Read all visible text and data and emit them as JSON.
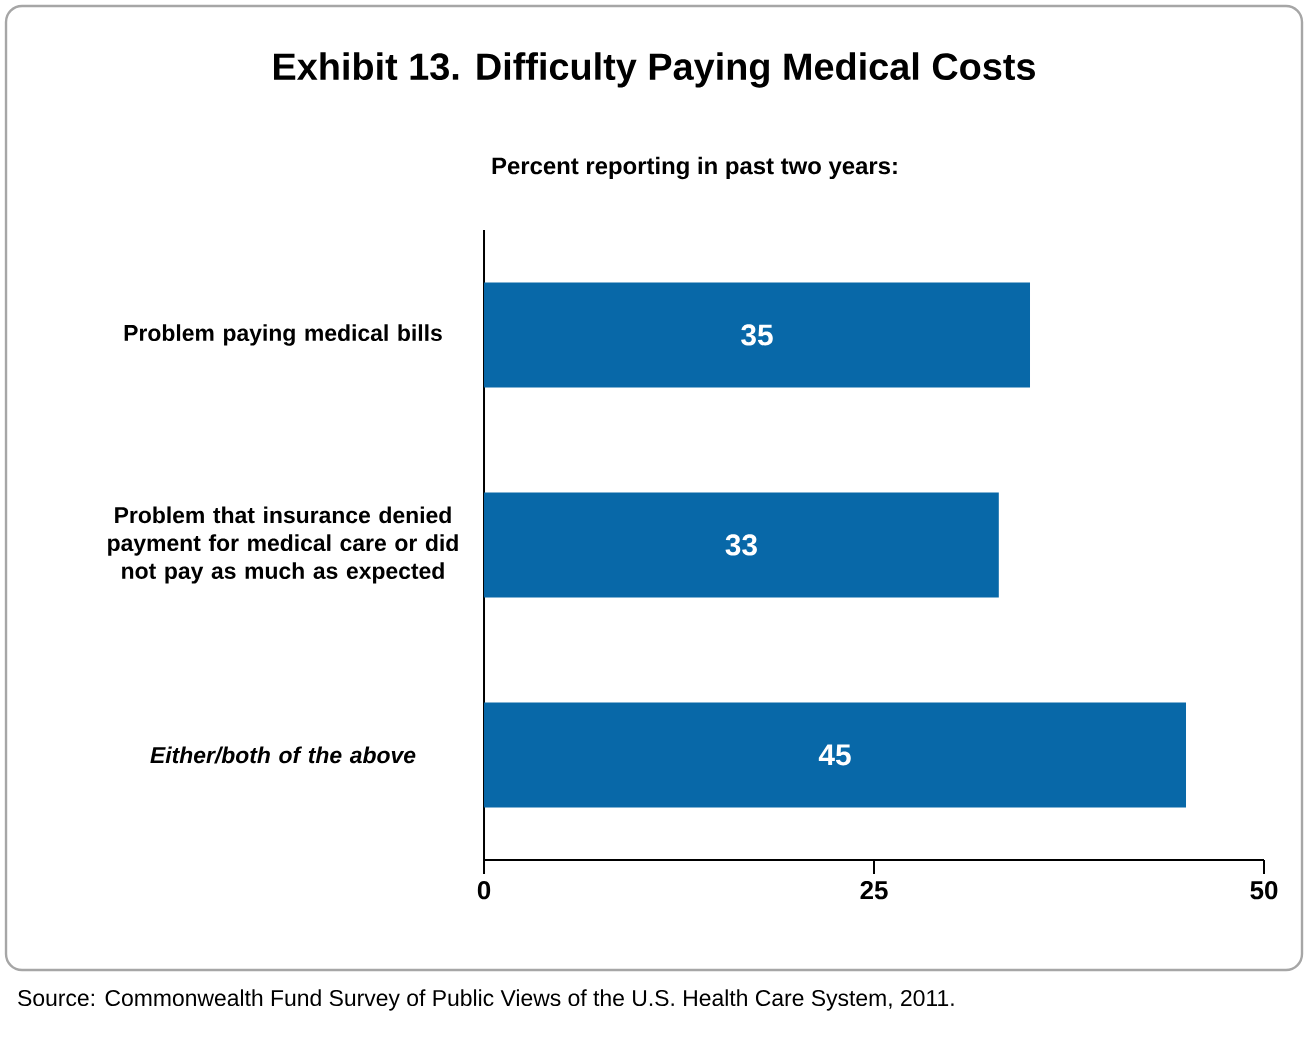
{
  "chart_data": {
    "type": "bar",
    "orientation": "horizontal",
    "title": "Exhibit 13. Difficulty Paying Medical Costs",
    "subtitle": "Percent reporting in past two years:",
    "categories": [
      "Problem paying medical bills",
      "Problem that insurance denied payment for medical care or did not pay as much as expected",
      "*Either/both of the above*"
    ],
    "values": [
      35,
      33,
      45
    ],
    "color": "#0868a8",
    "data_labels": true,
    "xlim": [
      0,
      50
    ],
    "xticks": [
      0,
      25,
      50
    ],
    "grid": false,
    "annotations": [
      "Source: Commonwealth Fund Survey of Public Views of the U.S. Health Care System, 2011."
    ]
  }
}
